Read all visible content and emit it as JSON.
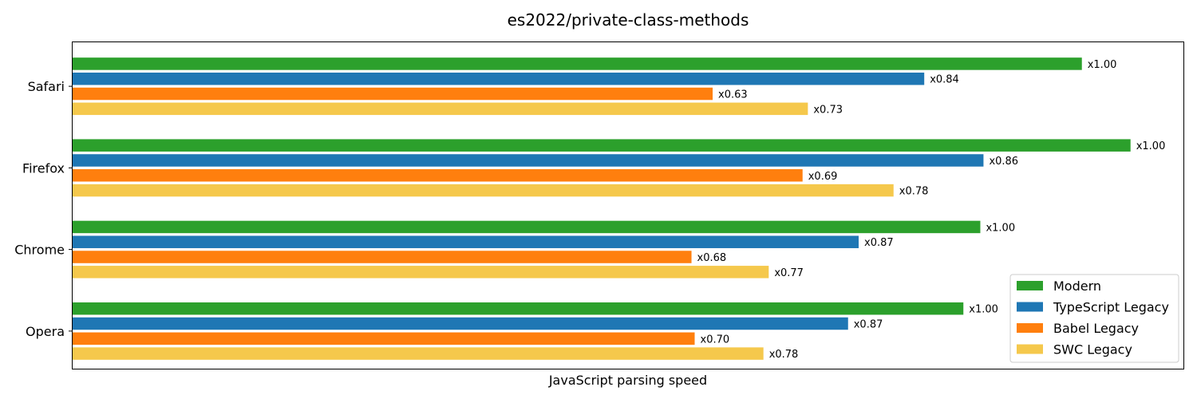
{
  "chart_data": {
    "type": "bar",
    "orientation": "horizontal",
    "title": "es2022/private-class-methods",
    "xlabel": "JavaScript parsing speed",
    "ylabel": "",
    "categories": [
      "Safari",
      "Firefox",
      "Chrome",
      "Opera"
    ],
    "xlim": [
      0,
      1.05
    ],
    "grid": false,
    "legend_position": "bottom-right",
    "series": [
      {
        "name": "Modern",
        "color": "#2ca02c",
        "values": [
          0.954,
          1.0,
          0.858,
          0.842
        ],
        "labels": [
          "x1.00",
          "x1.00",
          "x1.00",
          "x1.00"
        ]
      },
      {
        "name": "TypeScript Legacy",
        "color": "#1f77b4",
        "values": [
          0.805,
          0.861,
          0.743,
          0.733
        ],
        "labels": [
          "x0.84",
          "x0.86",
          "x0.87",
          "x0.87"
        ]
      },
      {
        "name": "Babel Legacy",
        "color": "#ff7f0e",
        "values": [
          0.605,
          0.69,
          0.585,
          0.588
        ],
        "labels": [
          "x0.63",
          "x0.69",
          "x0.68",
          "x0.70"
        ]
      },
      {
        "name": "SWC Legacy",
        "color": "#f5c84c",
        "values": [
          0.695,
          0.776,
          0.658,
          0.653
        ],
        "labels": [
          "x0.73",
          "x0.78",
          "x0.77",
          "x0.78"
        ]
      }
    ]
  }
}
